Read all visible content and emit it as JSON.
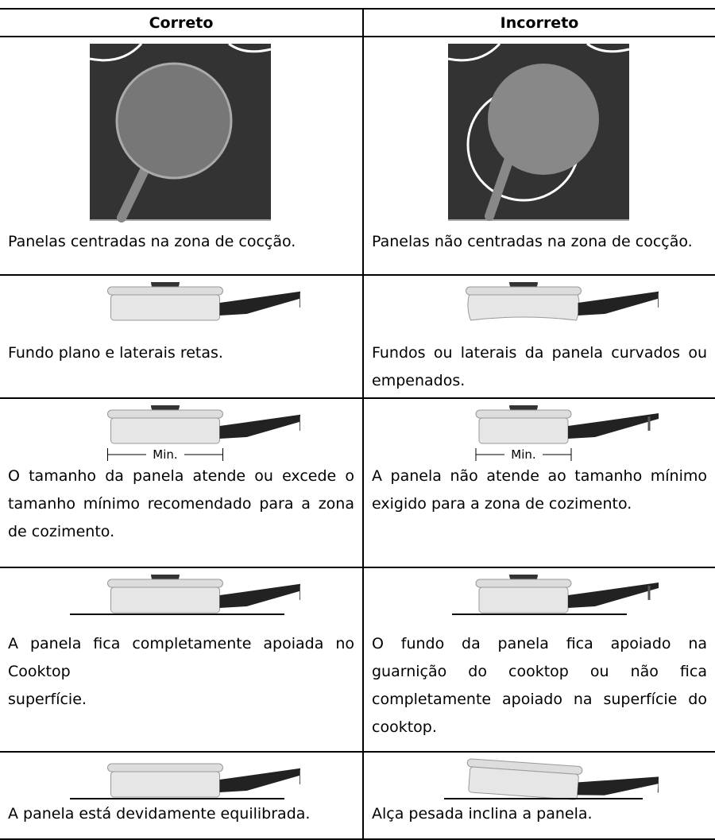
{
  "table": {
    "header": [
      "Correto",
      "Incorreto"
    ],
    "rows": [
      [
        {
          "text": "Panelas centradas na zona de cocção."
        },
        {
          "text": "Panelas não centradas na zona de cocção."
        }
      ],
      [
        {
          "text": "Fundo plano e laterais retas."
        },
        {
          "text": "Fundos ou laterais da panela curvados ou empenados."
        }
      ],
      [
        {
          "text": "O tamanho da panela atende ou excede o tamanho mínimo recomendado para a zona de cozimento.",
          "label": "Min."
        },
        {
          "text": "A panela não atende ao tamanho mínimo exigido para a zona de cozimento.",
          "label": "Min."
        }
      ],
      [
        {
          "text": "A panela fica completamente apoiada no Cooktop\nsuperfície."
        },
        {
          "text": "O fundo da panela fica apoiado na guarnição do cooktop ou não fica completamente apoiado na superfície do cooktop."
        }
      ],
      [
        {
          "text": "A panela está devidamente equilibrada."
        },
        {
          "text": "Alça pesada inclina a panela."
        }
      ]
    ]
  }
}
